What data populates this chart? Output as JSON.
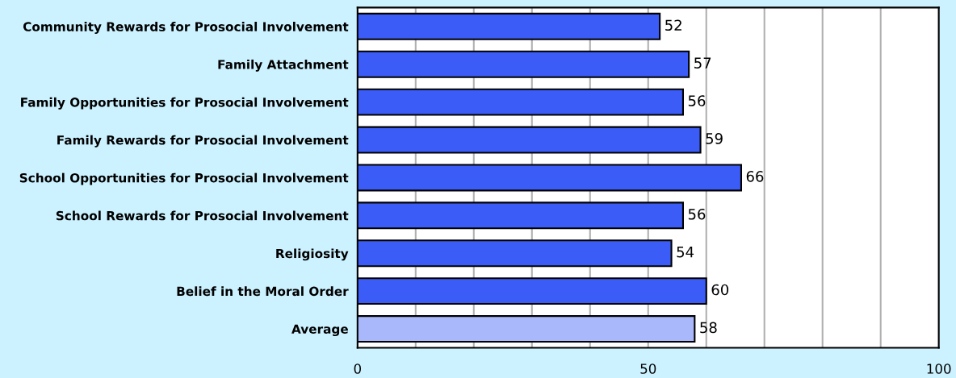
{
  "chart_data": {
    "type": "bar",
    "orientation": "horizontal",
    "categories": [
      "Community Rewards for Prosocial Involvement",
      "Family Attachment",
      "Family Opportunities for Prosocial Involvement",
      "Family Rewards for Prosocial Involvement",
      "School Opportunities for Prosocial Involvement",
      "School Rewards for Prosocial Involvement",
      "Religiosity",
      "Belief in the Moral Order",
      "Average"
    ],
    "values": [
      52,
      57,
      56,
      59,
      66,
      56,
      54,
      60,
      58
    ],
    "colors": [
      "#3b5cf7",
      "#3b5cf7",
      "#3b5cf7",
      "#3b5cf7",
      "#3b5cf7",
      "#3b5cf7",
      "#3b5cf7",
      "#3b5cf7",
      "#a9b8fb"
    ],
    "xlim": [
      0,
      100
    ],
    "xticks": [
      0,
      {
        "value": 10,
        "label": null
      },
      {
        "value": 20,
        "label": null
      },
      {
        "value": 30,
        "label": null
      },
      {
        "value": 40,
        "label": null
      },
      50,
      {
        "value": 60,
        "label": null
      },
      {
        "value": 70,
        "label": null
      },
      {
        "value": 80,
        "label": null
      },
      {
        "value": 90,
        "label": null
      },
      100
    ],
    "grid": "x",
    "data_labels": true
  }
}
